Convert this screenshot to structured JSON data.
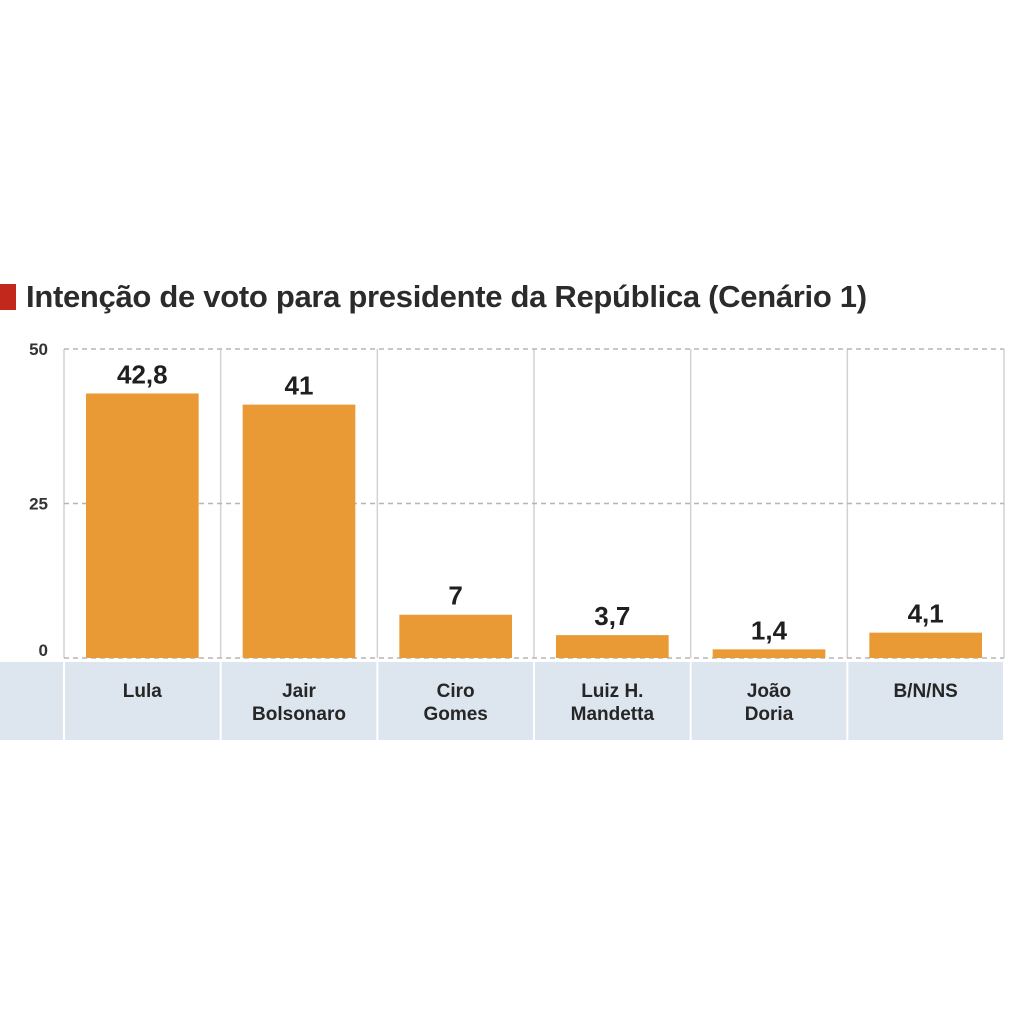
{
  "chart_data": {
    "type": "bar",
    "title": "Intenção de voto para presidente da República (Cenário 1)",
    "categories": [
      [
        "Lula"
      ],
      [
        "Jair",
        "Bolsonaro"
      ],
      [
        "Ciro",
        "Gomes"
      ],
      [
        "Luiz H.",
        "Mandetta"
      ],
      [
        "João",
        "Doria"
      ],
      [
        "B/N/NS"
      ]
    ],
    "values": [
      42.8,
      41,
      7,
      3.7,
      1.4,
      4.1
    ],
    "value_labels": [
      "42,8",
      "41",
      "7",
      "3,7",
      "1,4",
      "4,1"
    ],
    "yticks": [
      0,
      25,
      50
    ],
    "ylim": [
      0,
      50
    ],
    "xlabel": "",
    "ylabel": "",
    "grid": "dashed",
    "legend": "none"
  },
  "colors": {
    "bar": "#ea9a35",
    "title_marker": "#c2281b",
    "category_band": "#dde5ee",
    "grid": "#b5b5b5",
    "column_divider": "#d2d2d2"
  }
}
